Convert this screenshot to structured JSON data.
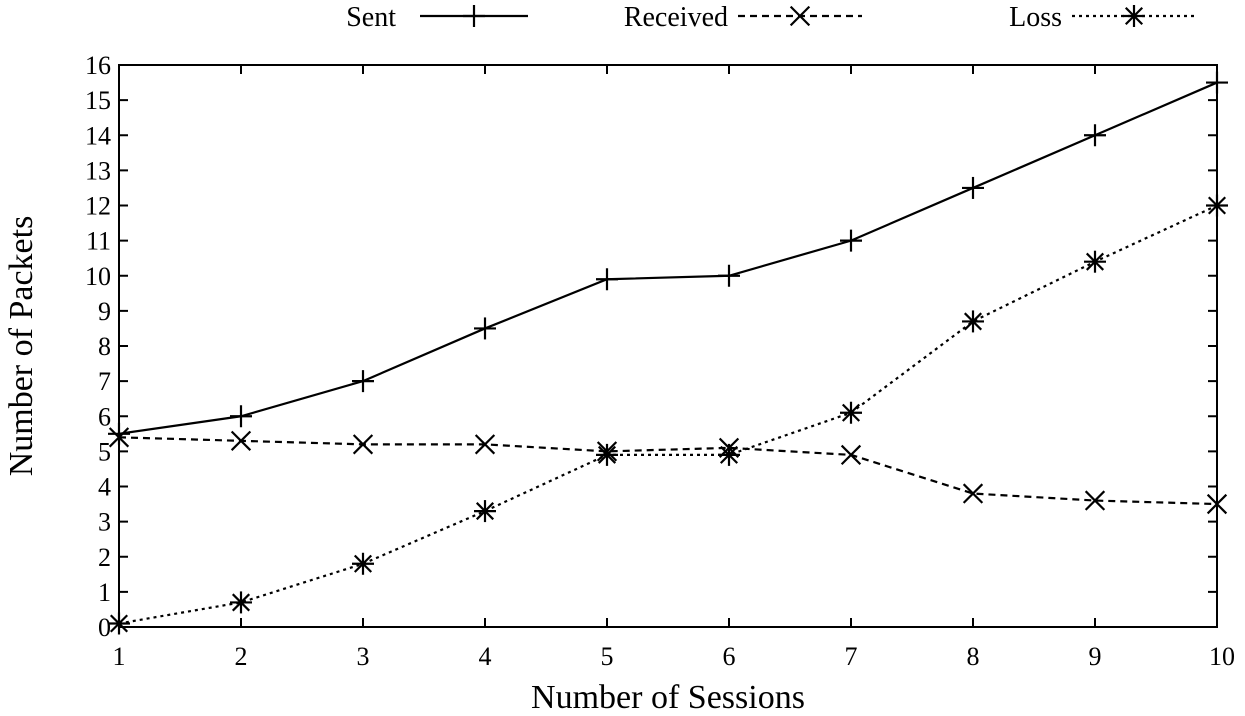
{
  "chart_data": {
    "type": "line",
    "xlabel": "Number of Sessions",
    "ylabel": "Number of Packets",
    "x": [
      1,
      2,
      3,
      4,
      5,
      6,
      7,
      8,
      9,
      10
    ],
    "xlim": [
      1,
      10
    ],
    "ylim": [
      0,
      16
    ],
    "xticks": [
      "1",
      "2",
      "3",
      "4",
      "5",
      "6",
      "7",
      "8",
      "9",
      "10"
    ],
    "yticks": [
      "0",
      "1",
      "2",
      "3",
      "4",
      "5",
      "6",
      "7",
      "8",
      "9",
      "10",
      "11",
      "12",
      "13",
      "14",
      "15",
      "16"
    ],
    "grid": false,
    "legend_position": "top",
    "series": [
      {
        "name": "Sent",
        "marker": "plus",
        "style": "solid",
        "color": "#000000",
        "values": [
          5.5,
          6.0,
          7.0,
          8.5,
          9.9,
          10.0,
          11.0,
          12.5,
          14.0,
          15.5
        ]
      },
      {
        "name": "Received",
        "marker": "cross",
        "style": "dashed",
        "color": "#000000",
        "values": [
          5.4,
          5.3,
          5.2,
          5.2,
          5.0,
          5.1,
          4.9,
          3.8,
          3.6,
          3.5
        ]
      },
      {
        "name": "Loss",
        "marker": "asterisk",
        "style": "dotted",
        "color": "#000000",
        "values": [
          0.1,
          0.7,
          1.8,
          3.3,
          4.9,
          4.9,
          6.1,
          8.7,
          10.4,
          12.0
        ]
      }
    ]
  }
}
